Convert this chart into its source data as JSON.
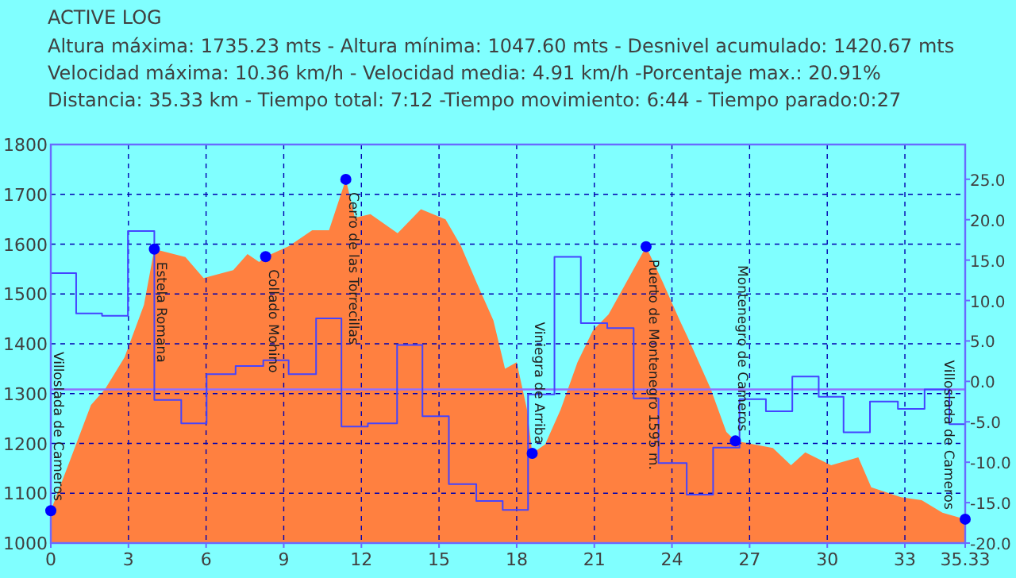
{
  "chart_data": {
    "type": "area",
    "title": "ACTIVE LOG",
    "subtitle": "Altura máxima: 1735.23 mts - Altura mínima: 1047.60 mts - Desnivel acumulado: 1420.67 mts\nVelocidad máxima: 10.36 km/h - Velocidad media: 4.91 km/h -Porcentaje max.: 20.91%\nDistancia: 35.33 km - Tiempo total:  7:12 -Tiempo movimiento: 6:44 - Tiempo parado:0:27",
    "xlim": [
      0,
      35.33
    ],
    "xticks": [
      0,
      3,
      6,
      9,
      12,
      15,
      18,
      21,
      24,
      27,
      30,
      33,
      35.33
    ],
    "ylim": [
      1000,
      1800
    ],
    "yticks": [
      1000,
      1100,
      1200,
      1300,
      1400,
      1500,
      1600,
      1700,
      1800
    ],
    "y2lim": [
      -20,
      29.3
    ],
    "y2ticks": [
      {
        "value": -20,
        "label": "-20.0"
      },
      {
        "value": -15,
        "label": "-15.0"
      },
      {
        "value": -10,
        "label": "-10.0"
      },
      {
        "value": -5,
        "label": "-5.0"
      },
      {
        "value": 0,
        "label": "0.0"
      },
      {
        "value": 5,
        "label": "5.0"
      },
      {
        "value": 10,
        "label": "10.0"
      },
      {
        "value": 15,
        "label": "15.0"
      },
      {
        "value": 20,
        "label": "20.0"
      },
      {
        "value": 25,
        "label": "25.0"
      }
    ],
    "grid": true,
    "series": [
      {
        "color": "#ff8040",
        "x": [
          0,
          0.7,
          1.55,
          2.1,
          2.85,
          3.6,
          4.0,
          5.2,
          5.9,
          7.05,
          7.6,
          8.05,
          8.3,
          9.2,
          10.1,
          10.75,
          11.4,
          11.75,
          12.35,
          13.4,
          14.3,
          15.25,
          15.85,
          16.45,
          17.1,
          17.55,
          18.0,
          18.4,
          18.6,
          19.1,
          19.7,
          20.35,
          20.95,
          21.55,
          23.0,
          23.65,
          24.3,
          24.6,
          25.5,
          26.1,
          26.45,
          27.9,
          28.6,
          29.15,
          30.15,
          31.2,
          31.7,
          32.85,
          33.65,
          34.45,
          35.33
        ],
        "values": [
          1065,
          1160,
          1277,
          1309,
          1373,
          1478,
          1590,
          1574,
          1532,
          1548,
          1580,
          1564,
          1575,
          1596,
          1628,
          1628,
          1730,
          1653,
          1660,
          1622,
          1670,
          1650,
          1596,
          1523,
          1447,
          1350,
          1363,
          1268,
          1180,
          1198,
          1268,
          1363,
          1427,
          1459,
          1595,
          1523,
          1447,
          1414,
          1309,
          1223,
          1205,
          1191,
          1156,
          1182,
          1156,
          1172,
          1112,
          1092,
          1086,
          1061,
          1048
        ]
      },
      {
        "type": "step",
        "color": "#4444ff",
        "axis": "y2",
        "x": [
          0,
          0.98,
          1.98,
          2.98,
          4.0,
          5.04,
          6.02,
          7.14,
          8.21,
          9.19,
          10.25,
          11.23,
          12.25,
          13.38,
          14.36,
          15.38,
          16.44,
          17.46,
          18.44,
          19.46,
          20.48,
          21.5,
          22.52,
          23.48,
          24.57,
          25.59,
          26.61,
          27.63,
          28.65,
          29.67,
          30.63,
          31.65,
          32.73,
          33.76,
          34.72,
          35.33
        ],
        "values": [
          13.4,
          8.4,
          8.1,
          18.6,
          -2.3,
          -5.2,
          0.9,
          1.9,
          2.6,
          0.9,
          7.8,
          -5.6,
          -5.2,
          4.5,
          -4.3,
          -12.7,
          -14.8,
          -15.9,
          -1.6,
          15.4,
          7.2,
          6.6,
          -2.1,
          -10.1,
          -14.0,
          -8.2,
          -2.2,
          -3.7,
          0.6,
          -1.9,
          -6.3,
          -2.5,
          -3.4,
          -1.0,
          -5.3,
          -5.3
        ]
      },
      {
        "type": "scatter",
        "color": "#0000ff",
        "marker": "circle",
        "x": [
          0,
          4.0,
          8.3,
          11.4,
          18.6,
          23.0,
          26.45,
          35.33
        ],
        "values": [
          1065,
          1590,
          1575,
          1730,
          1180,
          1595,
          1205,
          1048
        ]
      }
    ],
    "ref_lines": [
      {
        "axis": "y2",
        "value": -1,
        "color": "#9070ff"
      }
    ],
    "annotations": [
      {
        "text": "Villoslada de Cameros",
        "x": 0,
        "y": 1065
      },
      {
        "text": "Estela Romana",
        "x": 4.0,
        "y": 1590
      },
      {
        "text": "Collado Mohino",
        "x": 8.3,
        "y": 1575
      },
      {
        "text": "Cerro de las Torrecillas",
        "x": 11.4,
        "y": 1730
      },
      {
        "text": "Viniegra de Arriba",
        "x": 18.6,
        "y": 1180
      },
      {
        "text": "Puerto de Montenegro 1595 m.",
        "x": 23.0,
        "y": 1595
      },
      {
        "text": "Montenegro de Cameros",
        "x": 26.45,
        "y": 1205
      },
      {
        "text": "Villoslada de Cameros",
        "x": 35.33,
        "y": 1048
      }
    ]
  }
}
